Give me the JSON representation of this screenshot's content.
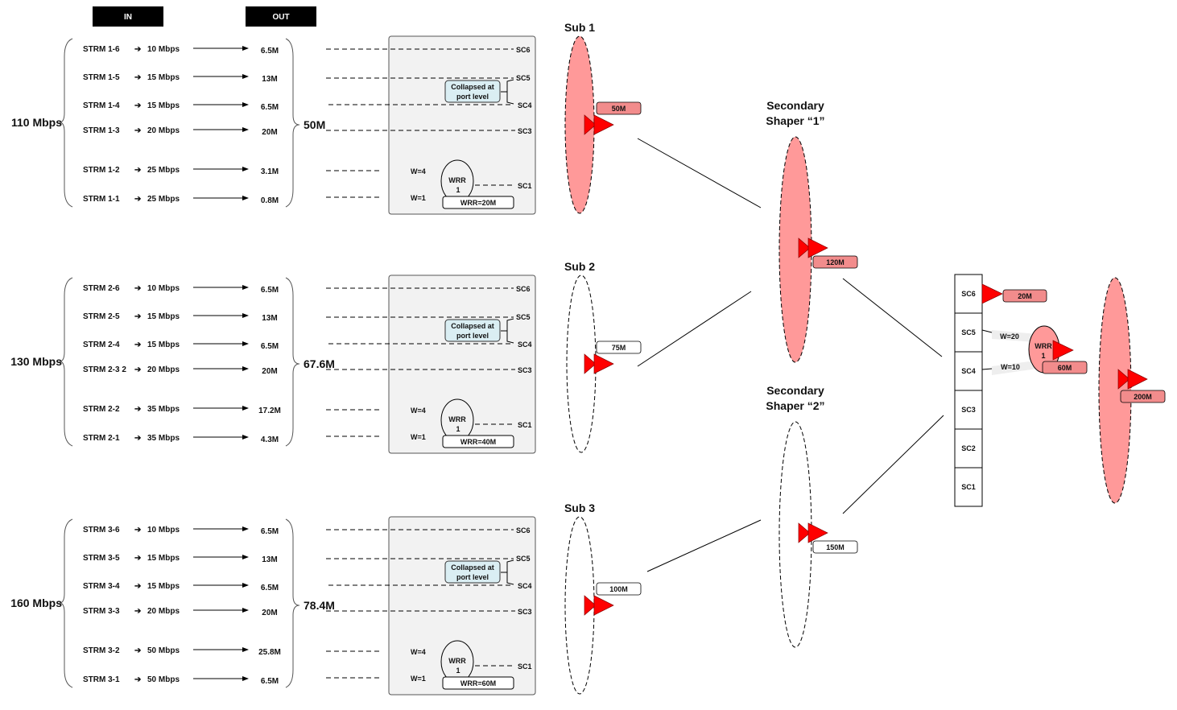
{
  "header": {
    "in_label": "IN",
    "out_label": "OUT"
  },
  "groups": [
    {
      "total_in": "110 Mbps",
      "total_out": "50M",
      "sub_label": "Sub 1",
      "sub_rate": "50M",
      "sub_active": true,
      "wrr_rate": "WRR=20M",
      "streams": [
        {
          "name": "STRM 1-6",
          "rate": "10 Mbps",
          "out": "6.5M"
        },
        {
          "name": "STRM 1-5",
          "rate": "15 Mbps",
          "out": "13M"
        },
        {
          "name": "STRM 1-4",
          "rate": "15 Mbps",
          "out": "6.5M"
        },
        {
          "name": "STRM 1-3",
          "rate": "20 Mbps",
          "out": "20M"
        },
        {
          "name": "STRM 1-2",
          "rate": "25 Mbps",
          "out": "3.1M"
        },
        {
          "name": "STRM 1-1",
          "rate": "25 Mbps",
          "out": "0.8M"
        }
      ]
    },
    {
      "total_in": "130 Mbps",
      "total_out": "67.6M",
      "sub_label": "Sub 2",
      "sub_rate": "75M",
      "sub_active": false,
      "wrr_rate": "WRR=40M",
      "streams": [
        {
          "name": "STRM 2-6",
          "rate": "10 Mbps",
          "out": "6.5M"
        },
        {
          "name": "STRM 2-5",
          "rate": "15 Mbps",
          "out": "13M"
        },
        {
          "name": "STRM 2-4",
          "rate": "15 Mbps",
          "out": "6.5M"
        },
        {
          "name": "STRM 2-3 2",
          "rate": "20 Mbps",
          "out": "20M"
        },
        {
          "name": "STRM 2-2",
          "rate": "35 Mbps",
          "out": "17.2M"
        },
        {
          "name": "STRM 2-1",
          "rate": "35 Mbps",
          "out": "4.3M"
        }
      ]
    },
    {
      "total_in": "160 Mbps",
      "total_out": "78.4M",
      "sub_label": "Sub 3",
      "sub_rate": "100M",
      "sub_active": false,
      "wrr_rate": "WRR=60M",
      "streams": [
        {
          "name": "STRM 3-6",
          "rate": "10 Mbps",
          "out": "6.5M"
        },
        {
          "name": "STRM 3-5",
          "rate": "15 Mbps",
          "out": "13M"
        },
        {
          "name": "STRM 3-4",
          "rate": "15 Mbps",
          "out": "6.5M"
        },
        {
          "name": "STRM 3-3",
          "rate": "20 Mbps",
          "out": "20M"
        },
        {
          "name": "STRM 3-2",
          "rate": "50 Mbps",
          "out": "25.8M"
        },
        {
          "name": "STRM 3-1",
          "rate": "50 Mbps",
          "out": "6.5M"
        }
      ]
    }
  ],
  "scheduler": {
    "sc6": "SC6",
    "sc5": "SC5",
    "sc4": "SC4",
    "sc3": "SC3",
    "sc1": "SC1",
    "collapsed_line1": "Collapsed at",
    "collapsed_line2": "port level",
    "w4": "W=4",
    "w1": "W=1",
    "wrr_line1": "WRR",
    "wrr_line2": "1"
  },
  "secondary": [
    {
      "line1": "Secondary",
      "line2": "Shaper “1”",
      "rate": "120M",
      "active": true
    },
    {
      "line1": "Secondary",
      "line2": "Shaper “2”",
      "rate": "150M",
      "active": false
    }
  ],
  "port": {
    "classes": [
      "SC6",
      "SC5",
      "SC4",
      "SC3",
      "SC2",
      "SC1"
    ],
    "sc6_rate": "20M",
    "w20": "W=20",
    "w10": "W=10",
    "wrr_line1": "WRR",
    "wrr_line2": "1",
    "wrr_rate": "60M",
    "port_rate": "200M"
  },
  "colors": {
    "fill": "#ff9999",
    "flag": "#ff0000",
    "label_fill": "#f28c8c",
    "collapsed_fill": "#daeef3",
    "box_fill": "#f2f2f2"
  }
}
